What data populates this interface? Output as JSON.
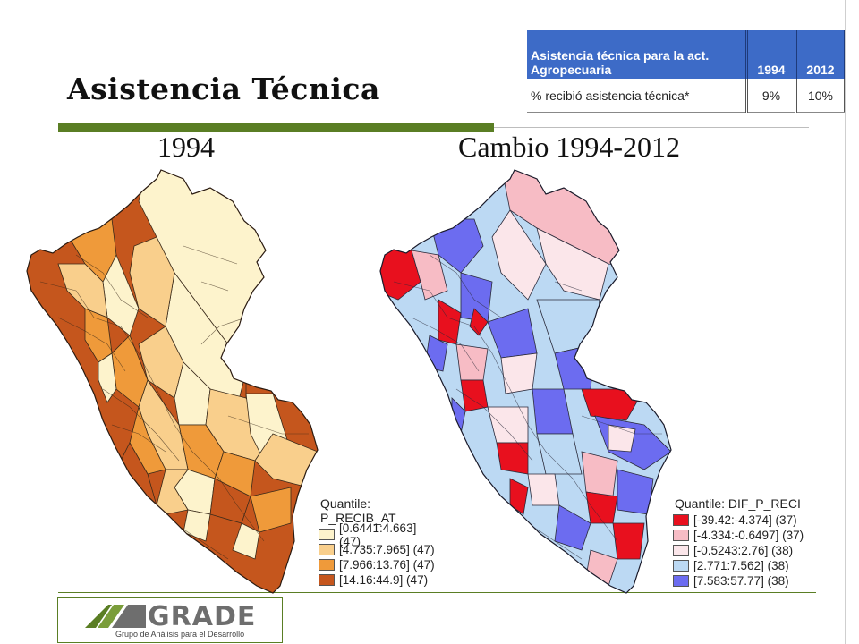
{
  "slide": {
    "title": "Asistencia Técnica"
  },
  "table": {
    "header": [
      "Asistencia técnica para la act. Agropecuaria",
      "1994",
      "2012"
    ],
    "row": [
      "% recibió asistencia técnica*",
      "9%",
      "10%"
    ]
  },
  "maps": {
    "left": {
      "subtitle": "1994",
      "legend": {
        "title": "Quantile: P_RECIB_AT",
        "items": [
          {
            "label": "[0.6441:4.663] (47)",
            "color": "#fdf3cc"
          },
          {
            "label": "[4.735:7.965] (47)",
            "color": "#f9cf8c"
          },
          {
            "label": "[7.966:13.76] (47)",
            "color": "#ef9a3a"
          },
          {
            "label": "[14.16:44.9] (47)",
            "color": "#c5561d"
          }
        ]
      }
    },
    "right": {
      "subtitle": "Cambio 1994-2012",
      "legend": {
        "title": "Quantile: DIF_P_RECI",
        "items": [
          {
            "label": "[-39.42:-4.374] (37)",
            "color": "#e8101e"
          },
          {
            "label": "[-4.334:-0.6497] (37)",
            "color": "#f7bcc5"
          },
          {
            "label": "[-0.5243:2.76] (38)",
            "color": "#fbe6ea"
          },
          {
            "label": "[2.771:7.562] (38)",
            "color": "#bcd9f3"
          },
          {
            "label": "[7.583:57.77] (38)",
            "color": "#6c6cf0"
          }
        ]
      }
    }
  },
  "logo": {
    "word": "GRADE",
    "tagline": "Grupo de Análisis para el Desarrollo"
  }
}
